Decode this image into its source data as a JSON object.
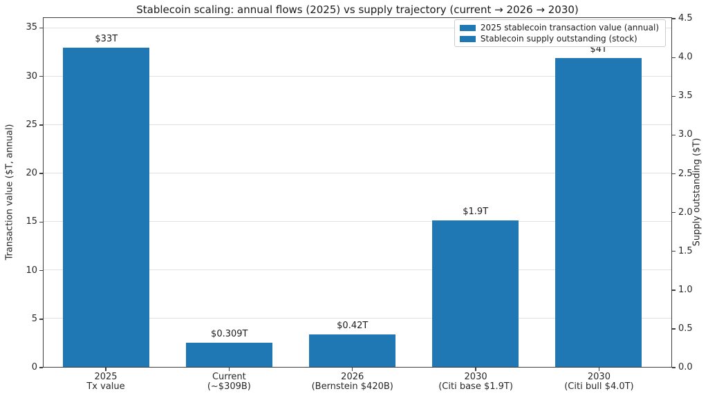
{
  "chart_data": {
    "type": "bar",
    "title": "Stablecoin scaling: annual flows (2025) vs supply trajectory (current → 2026 → 2030)",
    "ylabel_left": "Transaction value ($T, annual)",
    "ylabel_right": "Supply outstanding ($T)",
    "ylim_left": [
      0,
      36.1
    ],
    "ylim_right": [
      0,
      4.52
    ],
    "left_ticks": [
      0,
      5,
      10,
      15,
      20,
      25,
      30,
      35
    ],
    "right_ticks": [
      0.0,
      0.5,
      1.0,
      1.5,
      2.0,
      2.5,
      3.0,
      3.5,
      4.0,
      4.5
    ],
    "grid": "horizontal, at left-axis ticks",
    "legend_position": "upper right",
    "categories": [
      [
        "2025",
        "Tx value"
      ],
      [
        "Current",
        "(~$309B)"
      ],
      [
        "2026",
        "(Bernstein $420B)"
      ],
      [
        "2030",
        "(Citi base $1.9T)"
      ],
      [
        "2030",
        "(Citi bull $4.0T)"
      ]
    ],
    "series": [
      {
        "name": "2025 stablecoin transaction value (annual)",
        "axis": "left",
        "values": [
          33,
          null,
          null,
          null,
          null
        ],
        "labels": [
          "$33T",
          null,
          null,
          null,
          null
        ]
      },
      {
        "name": "Stablecoin supply outstanding (stock)",
        "axis": "right",
        "values": [
          null,
          0.309,
          0.42,
          1.9,
          4.0
        ],
        "labels": [
          null,
          "$0.309T",
          "$0.42T",
          "$1.9T",
          "$4T"
        ]
      }
    ],
    "colors": {
      "bar": "#1f77b4",
      "grid": "#e0e0e0",
      "spine": "#3d3d3d",
      "text": "#262626",
      "legend_border": "#cccccc",
      "background": "#ffffff"
    }
  }
}
